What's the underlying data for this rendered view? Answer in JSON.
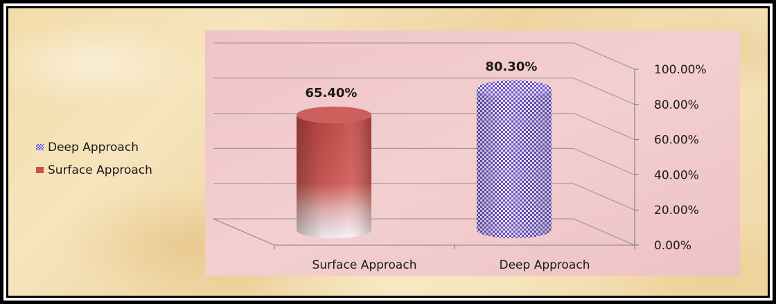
{
  "chart_data": {
    "type": "bar",
    "style": "3d-cylinder",
    "categories": [
      "Surface Approach",
      "Deep Approach"
    ],
    "series": [
      {
        "name": "Surface Approach",
        "values": [
          65.4,
          null
        ],
        "color": "#c6504d"
      },
      {
        "name": "Deep Approach",
        "values": [
          null,
          80.3
        ],
        "color": "#6a4fc0"
      }
    ],
    "values": [
      65.4,
      80.3
    ],
    "data_labels": [
      "65.40%",
      "80.30%"
    ],
    "y_ticks": [
      "0.00%",
      "20.00%",
      "40.00%",
      "60.00%",
      "80.00%",
      "100.00%"
    ],
    "ylim": [
      0,
      100
    ],
    "y_axis_side": "right",
    "grid": true,
    "legend_position": "left",
    "legend": [
      "Deep Approach",
      "Surface Approach"
    ],
    "plot_background": "#f2c9c9",
    "page_background": "#f3dcaa"
  }
}
